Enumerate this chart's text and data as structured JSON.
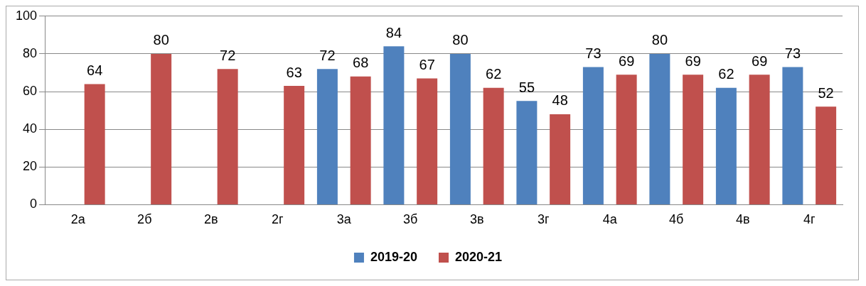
{
  "chart_data": {
    "type": "bar",
    "categories": [
      "2а",
      "2б",
      "2в",
      "2г",
      "3а",
      "3б",
      "3в",
      "3г",
      "4а",
      "4б",
      "4в",
      "4г"
    ],
    "series": [
      {
        "name": "2019-20",
        "color": "#4f81bd",
        "values": [
          null,
          null,
          null,
          null,
          72,
          84,
          80,
          55,
          73,
          80,
          62,
          73
        ]
      },
      {
        "name": "2020-21",
        "color": "#c0504d",
        "values": [
          64,
          80,
          72,
          63,
          68,
          67,
          62,
          48,
          69,
          69,
          69,
          52
        ]
      }
    ],
    "ylim": [
      0,
      100
    ],
    "yticks": [
      0,
      20,
      40,
      60,
      80,
      100
    ],
    "grid": "y",
    "legend": "bottom",
    "data_labels": true
  }
}
